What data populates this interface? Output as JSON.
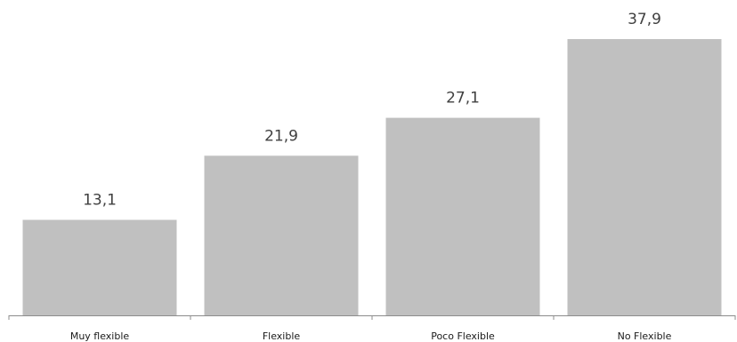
{
  "chart_data": {
    "type": "bar",
    "categories": [
      "Muy flexible",
      "Flexible",
      "Poco Flexible",
      "No Flexible"
    ],
    "values": [
      13.1,
      21.9,
      27.1,
      37.9
    ],
    "value_labels": [
      "13,1",
      "21,9",
      "27,1",
      "37,9"
    ],
    "title": "",
    "xlabel": "",
    "ylabel": "",
    "ylim": [
      0,
      40
    ],
    "grid": false,
    "legend": "none",
    "colors": {
      "bar": "#c0c0c0",
      "axis": "#8c8c8c",
      "value_label": "#404040",
      "tick_label": "#1a1a1a"
    }
  }
}
